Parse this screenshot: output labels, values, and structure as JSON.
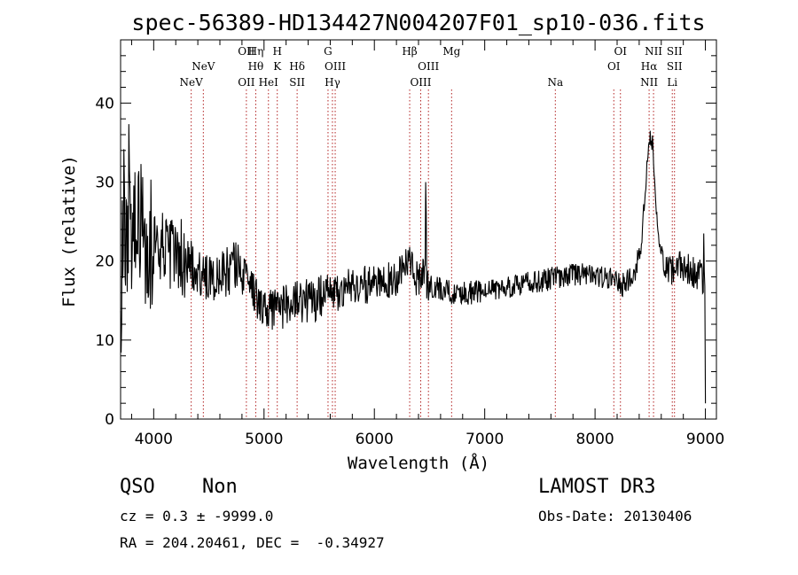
{
  "chart_data": {
    "type": "line",
    "title": "spec-56389-HD134427N004207F01_sp10-036.fits",
    "xlabel": "Wavelength (Å)",
    "ylabel": "Flux (relative)",
    "xlim": [
      3700,
      9100
    ],
    "ylim": [
      0,
      48
    ],
    "xticks": [
      {
        "value": 4000,
        "label": "4000"
      },
      {
        "value": 5000,
        "label": "5000"
      },
      {
        "value": 6000,
        "label": "6000"
      },
      {
        "value": 7000,
        "label": "7000"
      },
      {
        "value": 8000,
        "label": "8000"
      },
      {
        "value": 9000,
        "label": "9000"
      }
    ],
    "yticks": [
      {
        "value": 0,
        "label": "0"
      },
      {
        "value": 10,
        "label": "10"
      },
      {
        "value": 20,
        "label": "20"
      },
      {
        "value": 30,
        "label": "30"
      },
      {
        "value": 40,
        "label": "40"
      }
    ],
    "series_color": "#000000",
    "line_color": "#b22222",
    "lines": [
      {
        "wavelength": 4340,
        "label": "NeV",
        "row": 2
      },
      {
        "wavelength": 4450,
        "label": "NeV",
        "row": 1
      },
      {
        "wavelength": 4840,
        "label": "OII",
        "row": 0
      },
      {
        "wavelength": 4840,
        "label": "OII",
        "row": 2
      },
      {
        "wavelength": 4925,
        "label": "Hη",
        "row": 0
      },
      {
        "wavelength": 4925,
        "label": "Hθ",
        "row": 1
      },
      {
        "wavelength": 5040,
        "label": "HeI",
        "row": 2
      },
      {
        "wavelength": 5120,
        "label": "H",
        "row": 0
      },
      {
        "wavelength": 5120,
        "label": "K",
        "row": 1
      },
      {
        "wavelength": 5300,
        "label": "Hδ",
        "row": 1
      },
      {
        "wavelength": 5300,
        "label": "SII",
        "row": 2
      },
      {
        "wavelength": 5580,
        "label": "G",
        "row": 0
      },
      {
        "wavelength": 5645,
        "label": "OIII",
        "row": 1
      },
      {
        "wavelength": 5620,
        "label": "Hγ",
        "row": 2
      },
      {
        "wavelength": 6320,
        "label": "Hβ",
        "row": 0
      },
      {
        "wavelength": 6490,
        "label": "OIII",
        "row": 1
      },
      {
        "wavelength": 6420,
        "label": "OIII",
        "row": 2
      },
      {
        "wavelength": 6700,
        "label": "Mg",
        "row": 0
      },
      {
        "wavelength": 7640,
        "label": "Na",
        "row": 2
      },
      {
        "wavelength": 8230,
        "label": "OI",
        "row": 0
      },
      {
        "wavelength": 8170,
        "label": "OI",
        "row": 1
      },
      {
        "wavelength": 8530,
        "label": "NII",
        "row": 0
      },
      {
        "wavelength": 8490,
        "label": "Hα",
        "row": 1
      },
      {
        "wavelength": 8490,
        "label": "NII",
        "row": 2
      },
      {
        "wavelength": 8720,
        "label": "SII",
        "row": 0
      },
      {
        "wavelength": 8720,
        "label": "SII",
        "row": 1
      },
      {
        "wavelength": 8700,
        "label": "Li",
        "row": 2
      }
    ],
    "anchors": [
      [
        3700,
        19
      ],
      [
        3740,
        28
      ],
      [
        3780,
        26
      ],
      [
        3830,
        24
      ],
      [
        3900,
        24
      ],
      [
        4000,
        22
      ],
      [
        4100,
        21
      ],
      [
        4200,
        21
      ],
      [
        4300,
        20
      ],
      [
        4400,
        19
      ],
      [
        4500,
        18
      ],
      [
        4600,
        18
      ],
      [
        4700,
        19
      ],
      [
        4760,
        20
      ],
      [
        4850,
        17
      ],
      [
        4950,
        15
      ],
      [
        5050,
        14
      ],
      [
        5150,
        14
      ],
      [
        5300,
        15
      ],
      [
        5450,
        15
      ],
      [
        5600,
        16
      ],
      [
        5800,
        17
      ],
      [
        6000,
        17
      ],
      [
        6200,
        18
      ],
      [
        6320,
        21
      ],
      [
        6380,
        18
      ],
      [
        6460,
        18
      ],
      [
        6500,
        17
      ],
      [
        6700,
        16
      ],
      [
        6900,
        16
      ],
      [
        7100,
        16.5
      ],
      [
        7300,
        17
      ],
      [
        7500,
        17.5
      ],
      [
        7700,
        18
      ],
      [
        7900,
        18.5
      ],
      [
        8100,
        18
      ],
      [
        8250,
        17
      ],
      [
        8350,
        18
      ],
      [
        8420,
        22
      ],
      [
        8460,
        30
      ],
      [
        8490,
        36
      ],
      [
        8520,
        35
      ],
      [
        8550,
        28
      ],
      [
        8590,
        21
      ],
      [
        8650,
        19
      ],
      [
        8800,
        19
      ],
      [
        8900,
        18.5
      ],
      [
        8990,
        18
      ]
    ],
    "spikes": [
      {
        "wavelength": 6465,
        "flux": 30
      },
      {
        "wavelength": 6470,
        "flux": 26
      },
      {
        "wavelength": 8985,
        "flux": 23.5
      },
      {
        "wavelength": 9000,
        "flux": 2
      }
    ]
  },
  "footer": {
    "class": "QSO",
    "subclass": "Non",
    "survey": "LAMOST DR3",
    "cz": "cz = 0.3 ± -9999.0",
    "obs_date": "Obs-Date: 20130406",
    "radec": "RA = 204.20461, DEC =  -0.34927"
  }
}
